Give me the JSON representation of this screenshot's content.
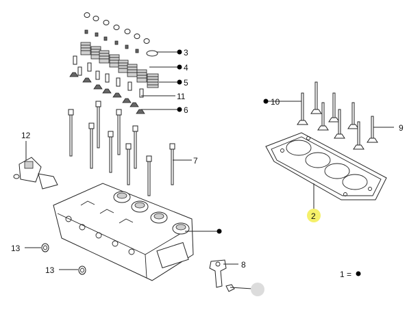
{
  "callouts": {
    "c3": "3",
    "c4": "4",
    "c5": "5",
    "c6": "6",
    "c7": "7",
    "c8": "8",
    "c9": "9",
    "c10": "10",
    "c11": "11",
    "c12": "12",
    "c13a": "13",
    "c13b": "13",
    "c2": "2",
    "c1": "1 ="
  },
  "colors": {
    "highlight": "#f5f06a",
    "ghost_marker": "#dcdcdc"
  },
  "icons": {
    "ghost": "faded-marker-icon"
  }
}
